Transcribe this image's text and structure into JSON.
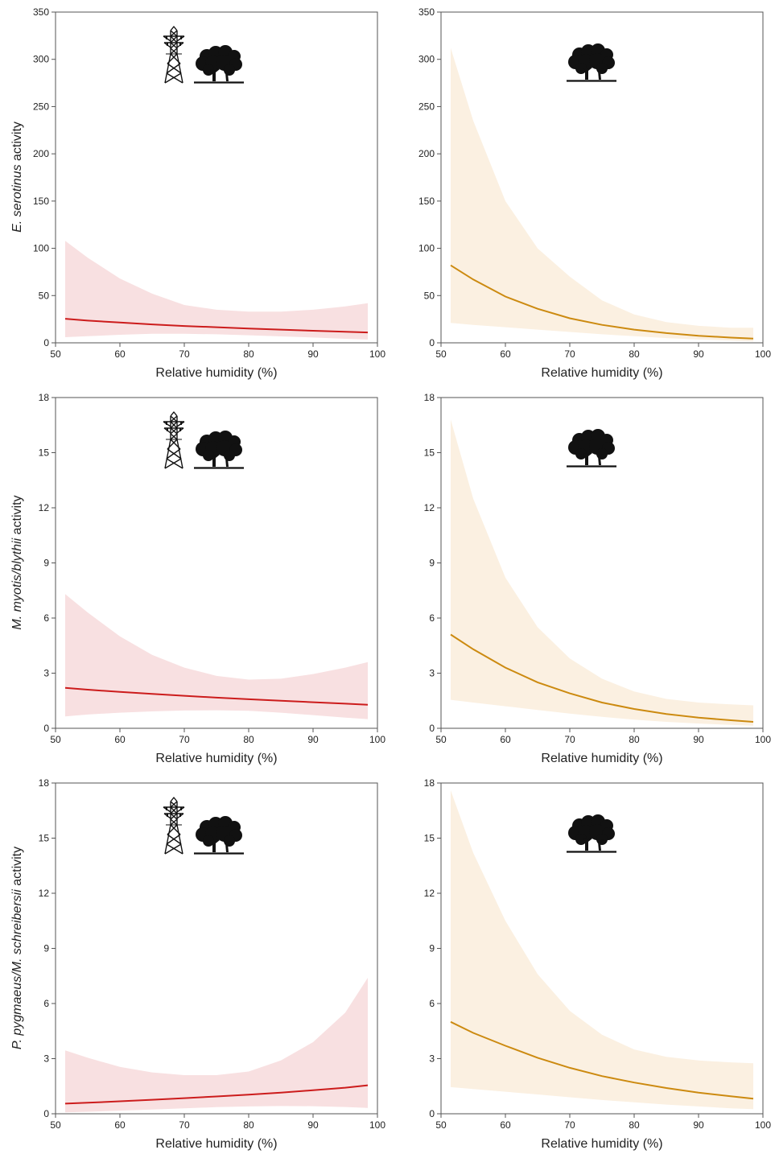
{
  "colors": {
    "pylon_line": "#cc1c1c",
    "pylon_band": "#f8e0e1",
    "control_line": "#cc8a10",
    "control_band": "#fbf0e1",
    "axis": "#555555"
  },
  "icons": {
    "pylon": "electricity-pylon-icon",
    "tree": "tree-icon"
  },
  "rows": [
    {
      "ylabel_italic": "E. serotinus",
      "ylabel_rest": " activity"
    },
    {
      "ylabel_italic": "M. myotis/blythii",
      "ylabel_rest": " activity"
    },
    {
      "ylabel_italic": "P. pygmaeus/M. schreibersii",
      "ylabel_rest": " activity"
    }
  ],
  "chart_data": [
    {
      "type": "line",
      "panel": "E. serotinus - pylon + tree",
      "icons": [
        "electricity-pylon-icon",
        "tree-icon"
      ],
      "xlabel": "Relative humidity (%)",
      "xlim": [
        50,
        100
      ],
      "ylim": [
        0,
        350
      ],
      "xticks": [
        50,
        60,
        70,
        80,
        90,
        100
      ],
      "yticks": [
        0,
        50,
        100,
        150,
        200,
        250,
        300,
        350
      ],
      "color": "pylon",
      "x": [
        51.5,
        55,
        60,
        65,
        70,
        75,
        80,
        85,
        90,
        95,
        98.5
      ],
      "y": [
        25.5,
        23.5,
        21.5,
        19.5,
        17.8,
        16.5,
        15.2,
        14,
        12.8,
        11.7,
        11
      ],
      "lower": [
        6,
        7,
        8.5,
        9.5,
        9.5,
        9,
        8,
        6.8,
        5.6,
        4.3,
        3.5
      ],
      "upper": [
        108,
        90,
        68,
        52,
        40,
        35,
        33,
        33,
        35,
        38.5,
        42
      ],
      "grid": false
    },
    {
      "type": "line",
      "panel": "E. serotinus - tree",
      "icons": [
        "tree-icon"
      ],
      "xlabel": "Relative humidity (%)",
      "xlim": [
        50,
        100
      ],
      "ylim": [
        0,
        350
      ],
      "xticks": [
        50,
        60,
        70,
        80,
        90,
        100
      ],
      "yticks": [
        0,
        50,
        100,
        150,
        200,
        250,
        300,
        350
      ],
      "color": "control",
      "x": [
        51.5,
        55,
        60,
        65,
        70,
        75,
        80,
        85,
        90,
        95,
        98.5
      ],
      "y": [
        82,
        67,
        49,
        36,
        26,
        19,
        14,
        10.3,
        7.5,
        5.5,
        4.5
      ],
      "lower": [
        21,
        19,
        16.5,
        14,
        11.5,
        9,
        7,
        5,
        3.5,
        2.5,
        1.5
      ],
      "upper": [
        312,
        235,
        150,
        100,
        70,
        45,
        30,
        22,
        18,
        16,
        16
      ],
      "grid": false
    },
    {
      "type": "line",
      "panel": "M. myotis/blythii - pylon + tree",
      "icons": [
        "electricity-pylon-icon",
        "tree-icon"
      ],
      "xlabel": "Relative humidity (%)",
      "xlim": [
        50,
        100
      ],
      "ylim": [
        0,
        18
      ],
      "xticks": [
        50,
        60,
        70,
        80,
        90,
        100
      ],
      "yticks": [
        0,
        3,
        6,
        9,
        12,
        15,
        18
      ],
      "color": "pylon",
      "x": [
        51.5,
        55,
        60,
        65,
        70,
        75,
        80,
        85,
        90,
        95,
        98.5
      ],
      "y": [
        2.2,
        2.1,
        1.98,
        1.87,
        1.77,
        1.67,
        1.58,
        1.5,
        1.42,
        1.34,
        1.28
      ],
      "lower": [
        0.65,
        0.75,
        0.85,
        0.92,
        0.97,
        0.98,
        0.95,
        0.85,
        0.72,
        0.58,
        0.5
      ],
      "upper": [
        7.3,
        6.3,
        5,
        4,
        3.3,
        2.85,
        2.65,
        2.7,
        2.95,
        3.3,
        3.6
      ],
      "grid": false
    },
    {
      "type": "line",
      "panel": "M. myotis/blythii - tree",
      "icons": [
        "tree-icon"
      ],
      "xlabel": "Relative humidity (%)",
      "xlim": [
        50,
        100
      ],
      "ylim": [
        0,
        18
      ],
      "xticks": [
        50,
        60,
        70,
        80,
        90,
        100
      ],
      "yticks": [
        0,
        3,
        6,
        9,
        12,
        15,
        18
      ],
      "color": "control",
      "x": [
        51.5,
        55,
        60,
        65,
        70,
        75,
        80,
        85,
        90,
        95,
        98.5
      ],
      "y": [
        5.1,
        4.3,
        3.3,
        2.5,
        1.9,
        1.4,
        1.05,
        0.78,
        0.58,
        0.44,
        0.35
      ],
      "lower": [
        1.55,
        1.4,
        1.2,
        1.0,
        0.8,
        0.62,
        0.47,
        0.35,
        0.26,
        0.19,
        0.14
      ],
      "upper": [
        16.8,
        12.5,
        8.2,
        5.5,
        3.8,
        2.7,
        2.0,
        1.6,
        1.4,
        1.3,
        1.25
      ],
      "grid": false
    },
    {
      "type": "line",
      "panel": "P. pygmaeus/M. schreibersii - pylon + tree",
      "icons": [
        "electricity-pylon-icon",
        "tree-icon"
      ],
      "xlabel": "Relative humidity (%)",
      "xlim": [
        50,
        100
      ],
      "ylim": [
        0,
        18
      ],
      "xticks": [
        50,
        60,
        70,
        80,
        90,
        100
      ],
      "yticks": [
        0,
        3,
        6,
        9,
        12,
        15,
        18
      ],
      "color": "pylon",
      "x": [
        51.5,
        55,
        60,
        65,
        70,
        75,
        80,
        85,
        90,
        95,
        98.5
      ],
      "y": [
        0.55,
        0.6,
        0.68,
        0.76,
        0.85,
        0.94,
        1.04,
        1.15,
        1.28,
        1.42,
        1.55
      ],
      "lower": [
        0.08,
        0.11,
        0.17,
        0.23,
        0.3,
        0.36,
        0.4,
        0.42,
        0.41,
        0.37,
        0.32
      ],
      "upper": [
        3.45,
        3.05,
        2.55,
        2.25,
        2.1,
        2.1,
        2.3,
        2.9,
        3.9,
        5.5,
        7.4
      ],
      "grid": false
    },
    {
      "type": "line",
      "panel": "P. pygmaeus/M. schreibersii - tree",
      "icons": [
        "tree-icon"
      ],
      "xlabel": "Relative humidity (%)",
      "xlim": [
        50,
        100
      ],
      "ylim": [
        0,
        18
      ],
      "xticks": [
        50,
        60,
        70,
        80,
        90,
        100
      ],
      "yticks": [
        0,
        3,
        6,
        9,
        12,
        15,
        18
      ],
      "color": "control",
      "x": [
        51.5,
        55,
        60,
        65,
        70,
        75,
        80,
        85,
        90,
        95,
        98.5
      ],
      "y": [
        5.0,
        4.4,
        3.7,
        3.05,
        2.5,
        2.05,
        1.7,
        1.4,
        1.15,
        0.95,
        0.82
      ],
      "lower": [
        1.45,
        1.35,
        1.2,
        1.05,
        0.9,
        0.75,
        0.62,
        0.5,
        0.4,
        0.3,
        0.25
      ],
      "upper": [
        17.6,
        14.2,
        10.5,
        7.6,
        5.6,
        4.3,
        3.5,
        3.1,
        2.9,
        2.8,
        2.75
      ],
      "grid": false
    }
  ]
}
